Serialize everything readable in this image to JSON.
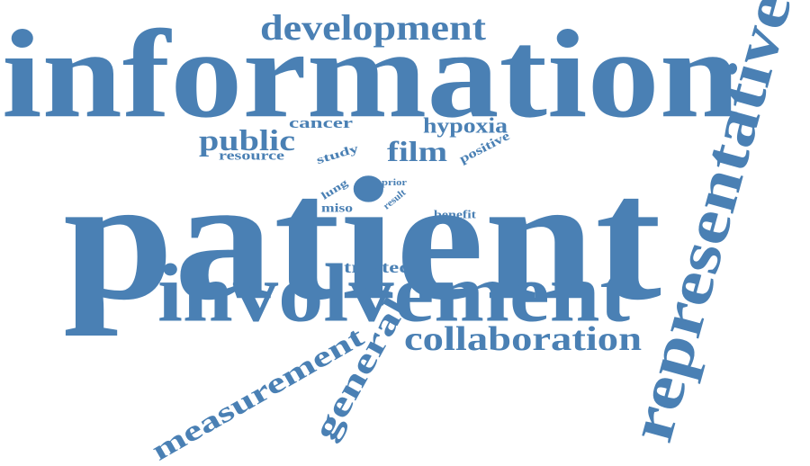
{
  "color": "#4a80b4",
  "words": [
    {
      "id": "information",
      "text": "information"
    },
    {
      "id": "patient",
      "text": "patient"
    },
    {
      "id": "involvement",
      "text": "involvement"
    },
    {
      "id": "representative",
      "text": "representative"
    },
    {
      "id": "development",
      "text": "development"
    },
    {
      "id": "collaboration",
      "text": "collaboration"
    },
    {
      "id": "measurement",
      "text": "measurement"
    },
    {
      "id": "general",
      "text": "general"
    },
    {
      "id": "public",
      "text": "public"
    },
    {
      "id": "film",
      "text": "film"
    },
    {
      "id": "hypoxia",
      "text": "hypoxia"
    },
    {
      "id": "cancer",
      "text": "cancer"
    },
    {
      "id": "resource",
      "text": "resource"
    },
    {
      "id": "study",
      "text": "study"
    },
    {
      "id": "positive",
      "text": "positive"
    },
    {
      "id": "treated",
      "text": "treated"
    },
    {
      "id": "benefit",
      "text": "benefit"
    },
    {
      "id": "miso",
      "text": "miso"
    },
    {
      "id": "lung",
      "text": "lung"
    },
    {
      "id": "prior",
      "text": "prior"
    },
    {
      "id": "result",
      "text": "result"
    }
  ]
}
